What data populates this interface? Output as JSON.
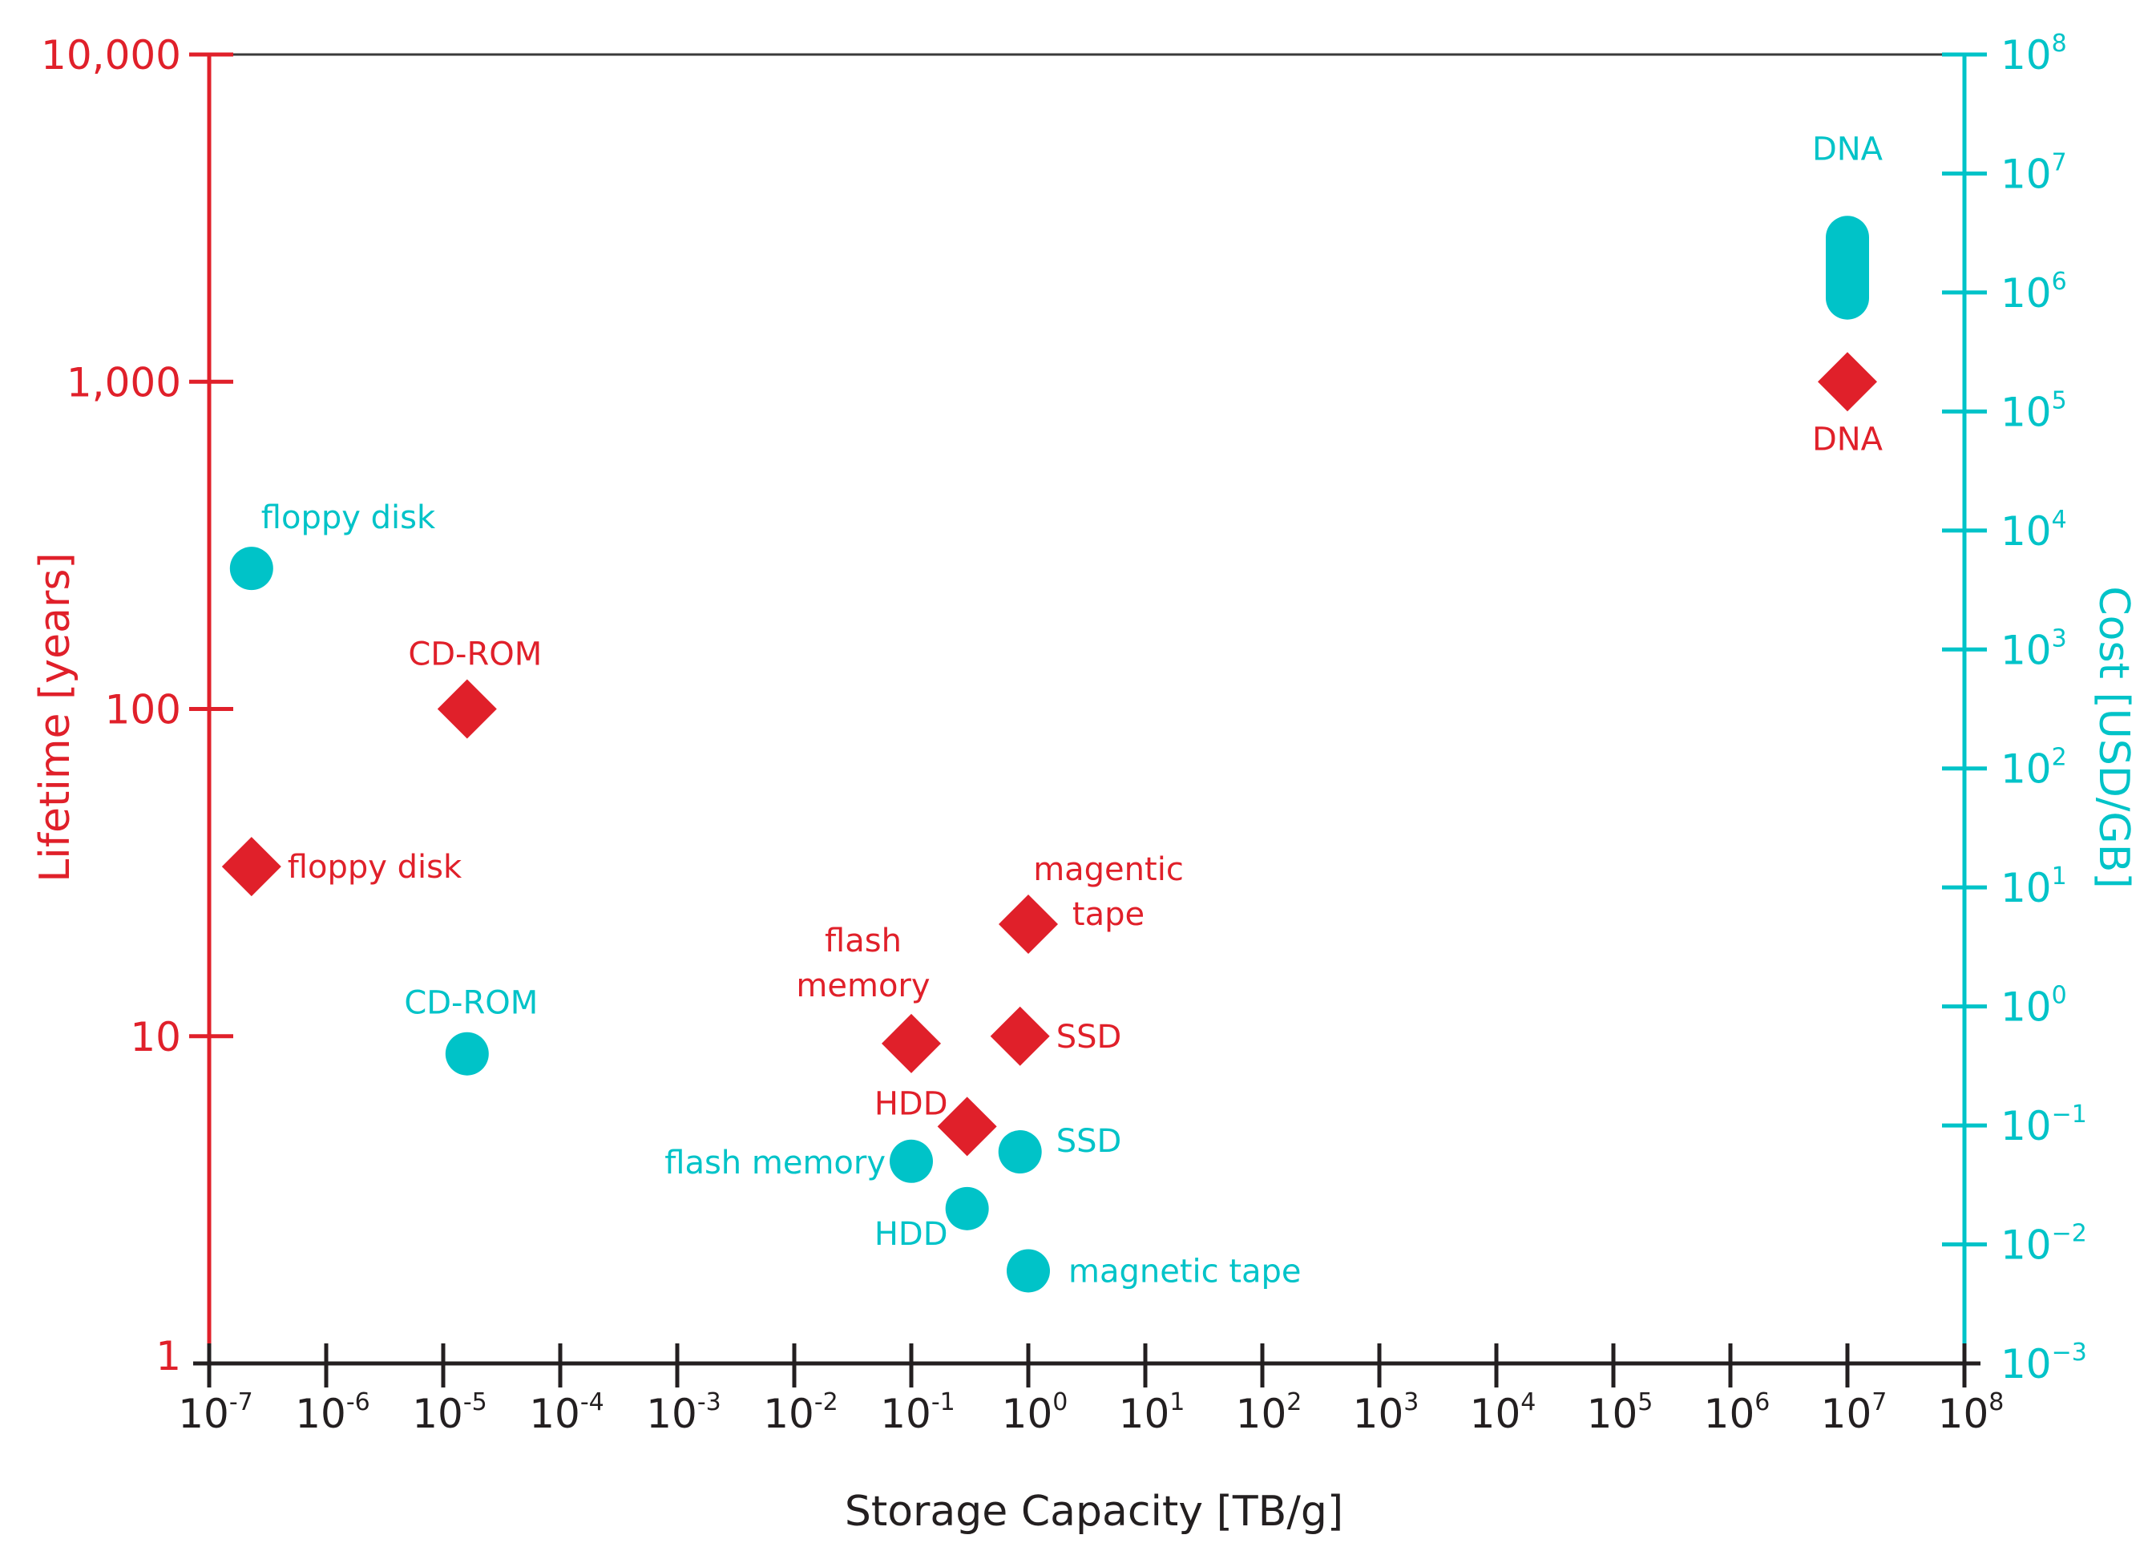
{
  "chart_data": {
    "type": "scatter",
    "title": "",
    "xlabel": "Storage Capacity [TB/g]",
    "ylabel_left": "Lifetime [years]",
    "ylabel_right": "Cost [USD/GB]",
    "x_scale": "log",
    "y_left_scale": "log",
    "y_right_scale": "log",
    "xlim": [
      1e-07,
      100000000.0
    ],
    "ylim_left": [
      1,
      10000
    ],
    "ylim_right": [
      0.001,
      100000000
    ],
    "grid": false,
    "legend": "none",
    "colors": {
      "lifetime": "#e0202a",
      "cost": "#00c3c8",
      "axis": "#231f20"
    },
    "x_ticks": [
      {
        "base": "10",
        "exp": "-7"
      },
      {
        "base": "10",
        "exp": "-6"
      },
      {
        "base": "10",
        "exp": "-5"
      },
      {
        "base": "10",
        "exp": "-4"
      },
      {
        "base": "10",
        "exp": "-3"
      },
      {
        "base": "10",
        "exp": "-2"
      },
      {
        "base": "10",
        "exp": "-1"
      },
      {
        "base": "10",
        "exp": "0"
      },
      {
        "base": "10",
        "exp": "1"
      },
      {
        "base": "10",
        "exp": "2"
      },
      {
        "base": "10",
        "exp": "3"
      },
      {
        "base": "10",
        "exp": "4"
      },
      {
        "base": "10",
        "exp": "5"
      },
      {
        "base": "10",
        "exp": "6"
      },
      {
        "base": "10",
        "exp": "7"
      },
      {
        "base": "10",
        "exp": "8"
      }
    ],
    "y_left_ticks": [
      {
        "value": 1,
        "label": "1"
      },
      {
        "value": 10,
        "label": "10"
      },
      {
        "value": 100,
        "label": "100"
      },
      {
        "value": 1000,
        "label": "1,000"
      },
      {
        "value": 10000,
        "label": "10,000"
      }
    ],
    "y_right_ticks": [
      {
        "base": "10",
        "exp": "−3"
      },
      {
        "base": "10",
        "exp": "−2"
      },
      {
        "base": "10",
        "exp": "−1"
      },
      {
        "base": "10",
        "exp": "0"
      },
      {
        "base": "10",
        "exp": "1"
      },
      {
        "base": "10",
        "exp": "2"
      },
      {
        "base": "10",
        "exp": "3"
      },
      {
        "base": "10",
        "exp": "4"
      },
      {
        "base": "10",
        "exp": "5"
      },
      {
        "base": "10",
        "exp": "6"
      },
      {
        "base": "10",
        "exp": "7"
      },
      {
        "base": "10",
        "exp": "8"
      }
    ],
    "series": [
      {
        "name": "Lifetime",
        "axis": "left",
        "marker": "diamond",
        "points": [
          {
            "label": "floppy disk",
            "x": 2.3e-07,
            "y": 33
          },
          {
            "label": "CD-ROM",
            "x": 1.6e-05,
            "y": 100
          },
          {
            "label": "flash\nmemory",
            "x": 0.1,
            "y": 9.5
          },
          {
            "label": "HDD",
            "x": 0.3,
            "y": 5.3
          },
          {
            "label": "SSD",
            "x": 0.85,
            "y": 10
          },
          {
            "label": "magentic\ntape",
            "x": 1.0,
            "y": 22
          },
          {
            "label": "DNA",
            "x": 10000000.0,
            "y": 1000
          }
        ]
      },
      {
        "name": "Cost",
        "axis": "right",
        "marker": "circle",
        "points": [
          {
            "label": "floppy disk",
            "x": 2.3e-07,
            "y": 4800
          },
          {
            "label": "CD-ROM",
            "x": 1.6e-05,
            "y": 0.4
          },
          {
            "label": "flash memory",
            "x": 0.1,
            "y": 0.05
          },
          {
            "label": "SSD",
            "x": 0.85,
            "y": 0.06
          },
          {
            "label": "HDD",
            "x": 0.3,
            "y": 0.02
          },
          {
            "label": "magnetic tape",
            "x": 1.0,
            "y": 0.006
          },
          {
            "label": "DNA",
            "x": 10000000.0,
            "y": 900000,
            "y_high": 2900000
          }
        ]
      }
    ]
  }
}
